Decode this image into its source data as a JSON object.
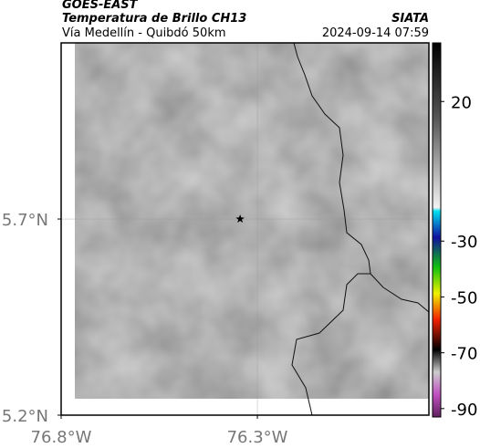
{
  "header": {
    "source": "GOES-EAST",
    "title": "Temperatura de Brillo CH13",
    "subtitle": "Vía Medellín - Quibdó 50km",
    "brand": "SIATA",
    "timestamp": "2024-09-14 07:59"
  },
  "map": {
    "xlim": [
      -76.8,
      -75.863
    ],
    "ylim": [
      5.2,
      6.149
    ],
    "xticks": [
      {
        "value": -76.8,
        "label": "76.8°W"
      },
      {
        "value": -76.3,
        "label": "76.3°W"
      }
    ],
    "yticks": [
      {
        "value": 5.2,
        "label": "5.2°N"
      },
      {
        "value": 5.7,
        "label": "5.7°N"
      }
    ],
    "grid": true,
    "marker": {
      "lon": -76.344,
      "lat": 5.7
    }
  },
  "colorbar": {
    "lim": [
      -93,
      41
    ],
    "ticks": [
      20,
      -30,
      -50,
      -70,
      -90
    ]
  }
}
